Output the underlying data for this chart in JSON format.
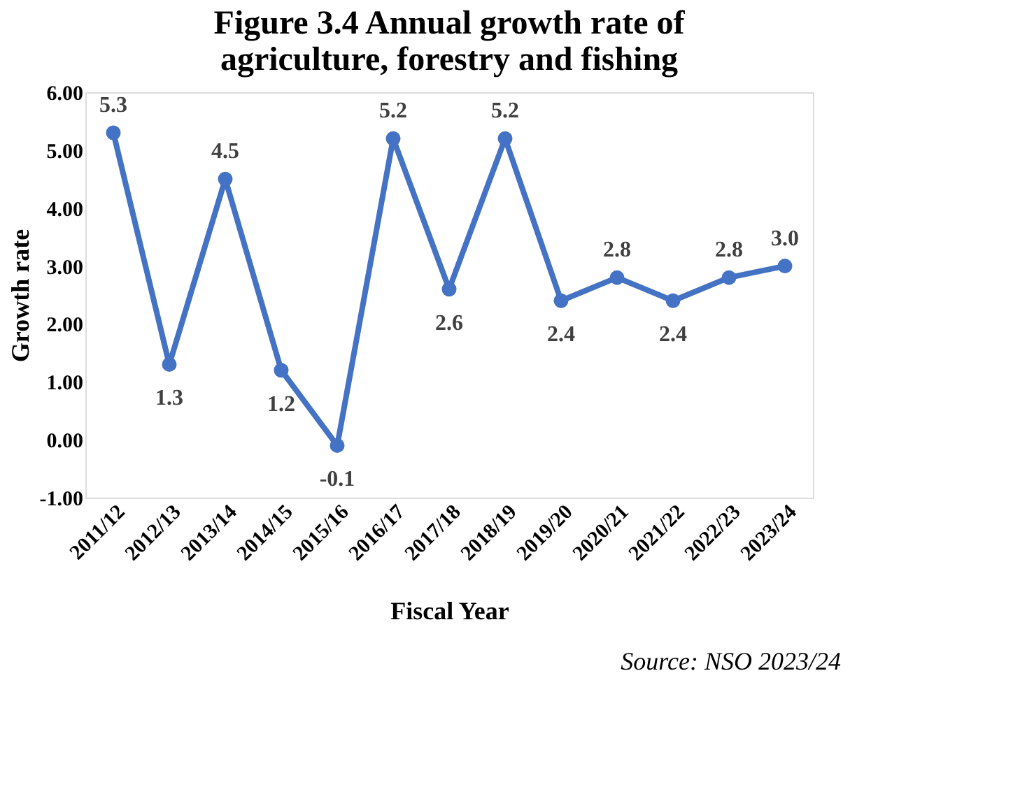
{
  "chart_data": {
    "type": "line",
    "title": "Figure 3.4 Annual growth rate of agriculture, forestry and fishing",
    "xlabel": "Fiscal Year",
    "ylabel": "Growth rate",
    "categories": [
      "2011/12",
      "2012/13",
      "2013/14",
      "2014/15",
      "2015/16",
      "2016/17",
      "2017/18",
      "2018/19",
      "2019/20",
      "2020/21",
      "2021/22",
      "2022/23",
      "2023/24"
    ],
    "series": [
      {
        "color": "#4472c4",
        "values": [
          5.3,
          1.3,
          4.5,
          1.2,
          -0.1,
          5.2,
          2.6,
          5.2,
          2.4,
          2.8,
          2.4,
          2.8,
          3.0
        ]
      }
    ],
    "ylim": [
      -1,
      6
    ],
    "yticks": [
      {
        "value": -1,
        "label": "-1.00"
      },
      {
        "value": 0,
        "label": "0.00"
      },
      {
        "value": 1,
        "label": "1.00"
      },
      {
        "value": 2,
        "label": "2.00"
      },
      {
        "value": 3,
        "label": "3.00"
      },
      {
        "value": 4,
        "label": "4.00"
      },
      {
        "value": 5,
        "label": "5.00"
      },
      {
        "value": 6,
        "label": "6.00"
      }
    ],
    "value_labels": [
      "5.3",
      "1.3",
      "4.5",
      "1.2",
      "-0.1",
      "5.2",
      "2.6",
      "5.2",
      "2.4",
      "2.8",
      "2.4",
      "2.8",
      "3.0"
    ],
    "marker": "circle",
    "line_style": "solid",
    "grid": false,
    "legend": false,
    "annotations": [
      "Source: NSO 2023/24"
    ]
  }
}
